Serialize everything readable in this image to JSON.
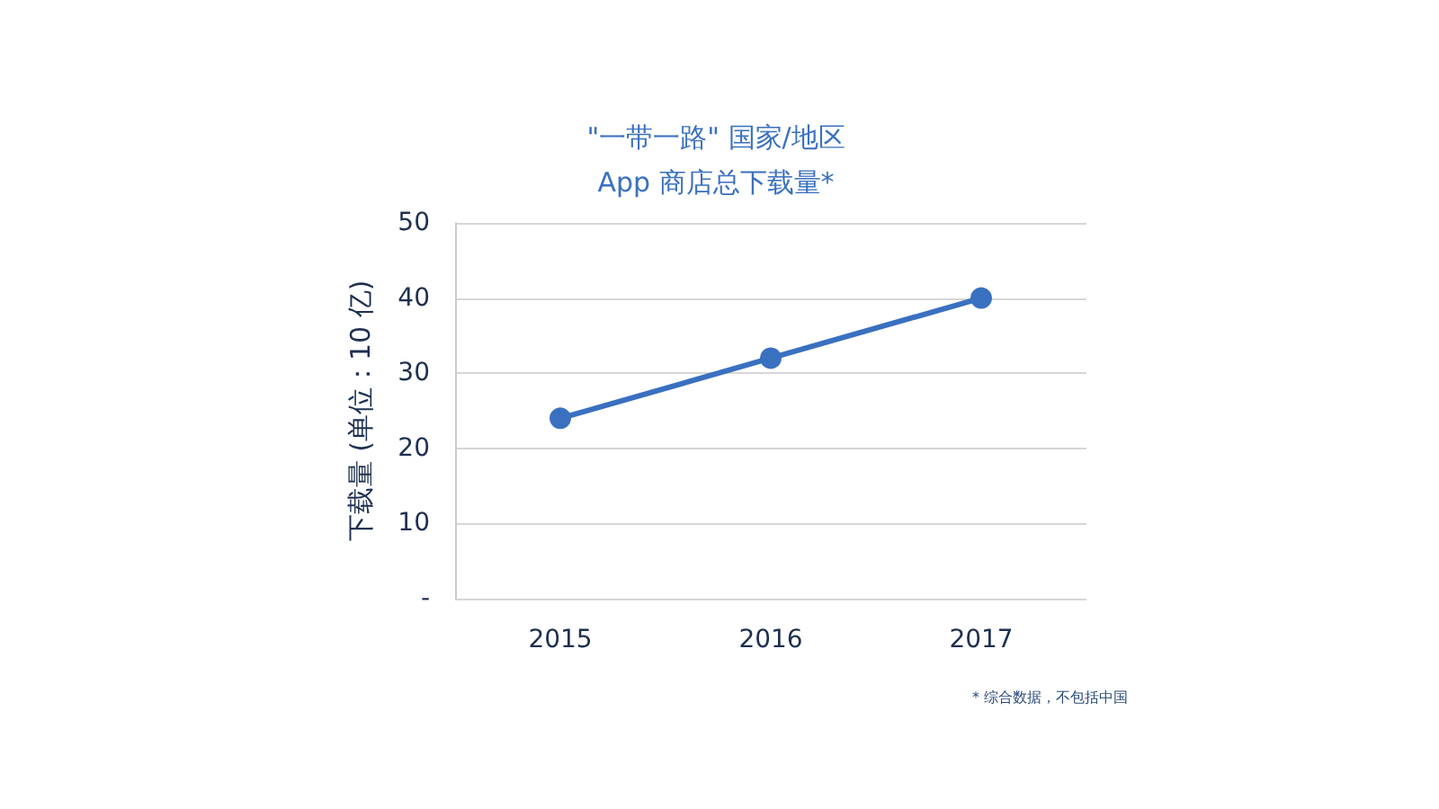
{
  "chart_data": {
    "type": "line",
    "title": "\"一带一路\" 国家/地区",
    "subtitle": "App 商店总下载量*",
    "ylabel": "下载量 (单位：10 亿)",
    "categories": [
      "2015",
      "2016",
      "2017"
    ],
    "series": [
      {
        "color": "#3a70c0",
        "values": [
          24,
          32,
          40
        ]
      }
    ],
    "ylim": [
      0,
      50
    ],
    "yticks": [
      {
        "value": 0,
        "label": "-"
      },
      10,
      20,
      30,
      40,
      50
    ],
    "grid": "y",
    "marker": "circle",
    "line_style": "solid",
    "annotations": [
      "* 综合数据，不包括中国"
    ]
  }
}
